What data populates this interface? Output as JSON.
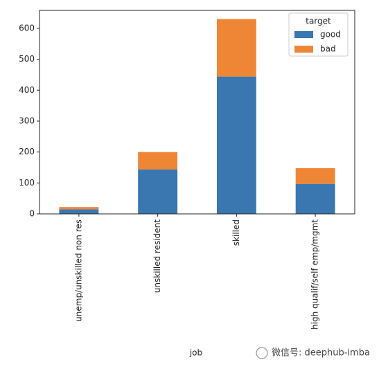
{
  "chart_data": {
    "type": "stacked_bar",
    "categories": [
      "unemp/unskilled non res",
      "unskilled resident",
      "skilled",
      "high qualif/self emp/mgmt"
    ],
    "series": [
      {
        "name": "good",
        "color": "#3a76af",
        "values": [
          15,
          144,
          444,
          97
        ]
      },
      {
        "name": "bad",
        "color": "#ef8636",
        "values": [
          7,
          56,
          186,
          51
        ]
      }
    ],
    "xlabel": "job",
    "legend_title": "target",
    "legend": "upper right",
    "ylim": [
      0,
      658
    ],
    "yticks": [
      0,
      100,
      200,
      300,
      400,
      500,
      600
    ]
  },
  "watermark": "微信号: deephub-imba"
}
